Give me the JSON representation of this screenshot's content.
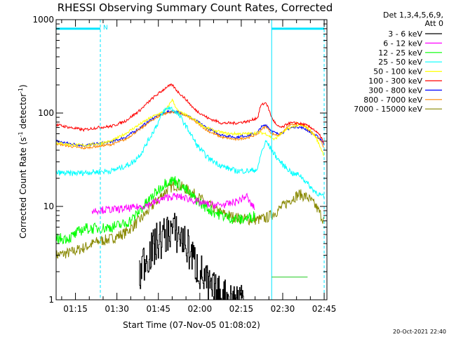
{
  "chart_data": {
    "type": "line",
    "title": "RHESSI Observing Summary Count Rates, Corrected",
    "xlabel": "Start Time (07-Nov-05 01:08:02)",
    "ylabel": "Corrected Count Rate (s",
    "ylabel_sup1": "-1",
    "ylabel_mid": " detector",
    "ylabel_sup2": "-1",
    "ylabel_end": ")",
    "x_unit": "minutes since 01:08:02",
    "xlim": [
      0,
      98
    ],
    "ylim": [
      1,
      1000
    ],
    "yscale": "log",
    "x_ticks": [
      {
        "label": "01:15",
        "value": 7
      },
      {
        "label": "01:30",
        "value": 22
      },
      {
        "label": "01:45",
        "value": 37
      },
      {
        "label": "02:00",
        "value": 52
      },
      {
        "label": "02:15",
        "value": 67
      },
      {
        "label": "02:30",
        "value": 82
      },
      {
        "label": "02:45",
        "value": 97
      }
    ],
    "y_ticks": [
      {
        "label": "1",
        "value": 1
      },
      {
        "label": "10",
        "value": 10
      },
      {
        "label": "100",
        "value": 100
      },
      {
        "label": "1000",
        "value": 1000
      }
    ],
    "legend": {
      "placement": "right",
      "header1": "Det 1,3,4,5,6,9,",
      "header2": "Att 0"
    },
    "series": [
      {
        "name": "3 - 6 keV",
        "color": "#000000",
        "x": [
          30,
          31,
          33,
          35,
          36,
          38,
          40,
          41,
          43,
          45,
          47,
          49,
          50,
          52,
          54,
          55,
          57,
          59,
          61,
          62,
          64,
          66,
          68
        ],
        "y": [
          1.6,
          2.4,
          3.0,
          3.4,
          4.0,
          4.5,
          5.0,
          5.8,
          5.2,
          4.8,
          3.8,
          3.0,
          2.5,
          2.0,
          1.6,
          1.35,
          1.2,
          1.1,
          1.05,
          1.0,
          1.0,
          1.05,
          1.1
        ]
      },
      {
        "name": "6 - 12 keV",
        "color": "#ff00ff",
        "x": [
          13,
          17,
          22,
          27,
          31,
          34,
          37,
          40,
          43,
          46,
          49,
          52,
          55,
          58,
          62,
          66,
          69,
          70,
          72
        ],
        "y": [
          9.0,
          9.2,
          9.3,
          9.6,
          10,
          10.6,
          11.5,
          12.5,
          12.8,
          12.5,
          11.8,
          11,
          10.5,
          10.3,
          10.5,
          11.5,
          13,
          11,
          9.5
        ]
      },
      {
        "name": "12 - 25 keV",
        "color": "#00ff00",
        "x": [
          0,
          5,
          10,
          15,
          20,
          25,
          28,
          31,
          34,
          37,
          40,
          43,
          46,
          49,
          52,
          56,
          60,
          64,
          67,
          70,
          72
        ],
        "y": [
          4.5,
          4.6,
          5.8,
          5.8,
          6.0,
          6.5,
          7.5,
          9.5,
          12,
          15,
          18.5,
          19,
          16,
          13,
          11,
          9,
          8,
          7.4,
          7.2,
          7.6,
          8
        ]
      },
      {
        "name": "25 - 50 keV",
        "color": "#00ffff",
        "x": [
          0,
          5,
          10,
          15,
          20,
          25,
          28,
          31,
          34,
          37,
          39,
          41,
          43,
          45,
          48,
          51,
          55,
          60,
          65,
          70,
          73,
          74,
          76,
          78,
          80,
          82,
          84,
          86,
          88,
          90,
          93,
          96,
          97
        ],
        "y": [
          23,
          22.5,
          23,
          23.5,
          24,
          27,
          30,
          38,
          55,
          80,
          105,
          115,
          105,
          90,
          65,
          45,
          33,
          27,
          24,
          24,
          25,
          36,
          50,
          40,
          33,
          28,
          25,
          22,
          22,
          19,
          15,
          13,
          12.5
        ]
      },
      {
        "name": "50 - 100 keV",
        "color": "#ffff00",
        "x": [
          0,
          5,
          10,
          15,
          20,
          25,
          30,
          35,
          38,
          40,
          42,
          44,
          47,
          50,
          54,
          58,
          62,
          66,
          70,
          73,
          76,
          79,
          82,
          84,
          86,
          88,
          91,
          94,
          97
        ],
        "y": [
          48,
          46,
          45,
          47,
          50,
          60,
          75,
          92,
          100,
          110,
          140,
          105,
          95,
          85,
          70,
          64,
          60,
          60,
          60,
          62,
          60,
          52,
          62,
          68,
          72,
          75,
          70,
          55,
          35
        ]
      },
      {
        "name": "100 - 300 keV",
        "color": "#ff0000",
        "x": [
          0,
          5,
          10,
          15,
          20,
          25,
          30,
          35,
          38,
          40,
          42,
          44,
          47,
          50,
          55,
          60,
          65,
          70,
          73,
          74,
          76,
          78,
          80,
          82,
          84,
          87,
          90,
          93,
          96,
          97
        ],
        "y": [
          75,
          70,
          66,
          70,
          72,
          82,
          105,
          145,
          170,
          190,
          200,
          170,
          140,
          110,
          88,
          78,
          78,
          82,
          90,
          120,
          130,
          90,
          72,
          70,
          78,
          78,
          75,
          68,
          55,
          45
        ]
      },
      {
        "name": "300 - 800 keV",
        "color": "#0000ff",
        "x": [
          0,
          5,
          10,
          15,
          20,
          25,
          30,
          35,
          38,
          40,
          42,
          44,
          47,
          50,
          55,
          60,
          65,
          70,
          73,
          74,
          76,
          78,
          80,
          82,
          84,
          87,
          90,
          93,
          96,
          97
        ],
        "y": [
          50,
          47,
          45,
          47,
          49,
          55,
          68,
          88,
          97,
          102,
          105,
          102,
          96,
          85,
          68,
          58,
          55,
          58,
          62,
          70,
          75,
          64,
          60,
          62,
          68,
          72,
          68,
          60,
          52,
          45
        ]
      },
      {
        "name": "800 - 7000 keV",
        "color": "#ff8800",
        "x": [
          0,
          5,
          10,
          15,
          20,
          25,
          30,
          35,
          38,
          40,
          42,
          44,
          47,
          50,
          55,
          60,
          65,
          70,
          73,
          74,
          76,
          78,
          80,
          82,
          84,
          87,
          90,
          93,
          96,
          97
        ],
        "y": [
          47,
          44,
          42,
          44,
          46,
          52,
          66,
          85,
          95,
          100,
          103,
          100,
          94,
          82,
          64,
          55,
          52,
          55,
          60,
          66,
          72,
          60,
          58,
          62,
          72,
          78,
          72,
          60,
          50,
          42
        ]
      },
      {
        "name": "7000 - 15000 keV",
        "color": "#888800",
        "x": [
          0,
          5,
          10,
          15,
          20,
          25,
          28,
          31,
          34,
          37,
          40,
          43,
          46,
          50,
          54,
          58,
          62,
          66,
          70,
          73,
          76,
          79,
          82,
          85,
          88,
          91,
          94,
          97
        ],
        "y": [
          3.0,
          3.2,
          3.6,
          4.2,
          4.5,
          5.2,
          6.2,
          7.5,
          9.5,
          12,
          15,
          17,
          16,
          13.5,
          11,
          9,
          8,
          7.5,
          7.2,
          7.2,
          7.5,
          8.5,
          10,
          12,
          13.5,
          12.5,
          10,
          7
        ]
      }
    ],
    "attenuator_bars": [
      {
        "x_start": 0,
        "x_end": 16,
        "y": 800,
        "label": ""
      },
      {
        "x_start": 78,
        "x_end": 97,
        "y": 800,
        "label": ""
      }
    ],
    "saa_bar": {
      "x_start": 78,
      "x_end": 91,
      "y": 1.75
    },
    "markers": [
      {
        "x": 16,
        "label": "N"
      }
    ],
    "vertical_lines": [
      {
        "x": 0,
        "style": "solid"
      },
      {
        "x": 16,
        "style": "dashed"
      },
      {
        "x": 78,
        "style": "solid"
      },
      {
        "x": 97,
        "style": "dashed"
      }
    ]
  },
  "footer": {
    "timestamp": "20-Oct-2021 22:40"
  }
}
